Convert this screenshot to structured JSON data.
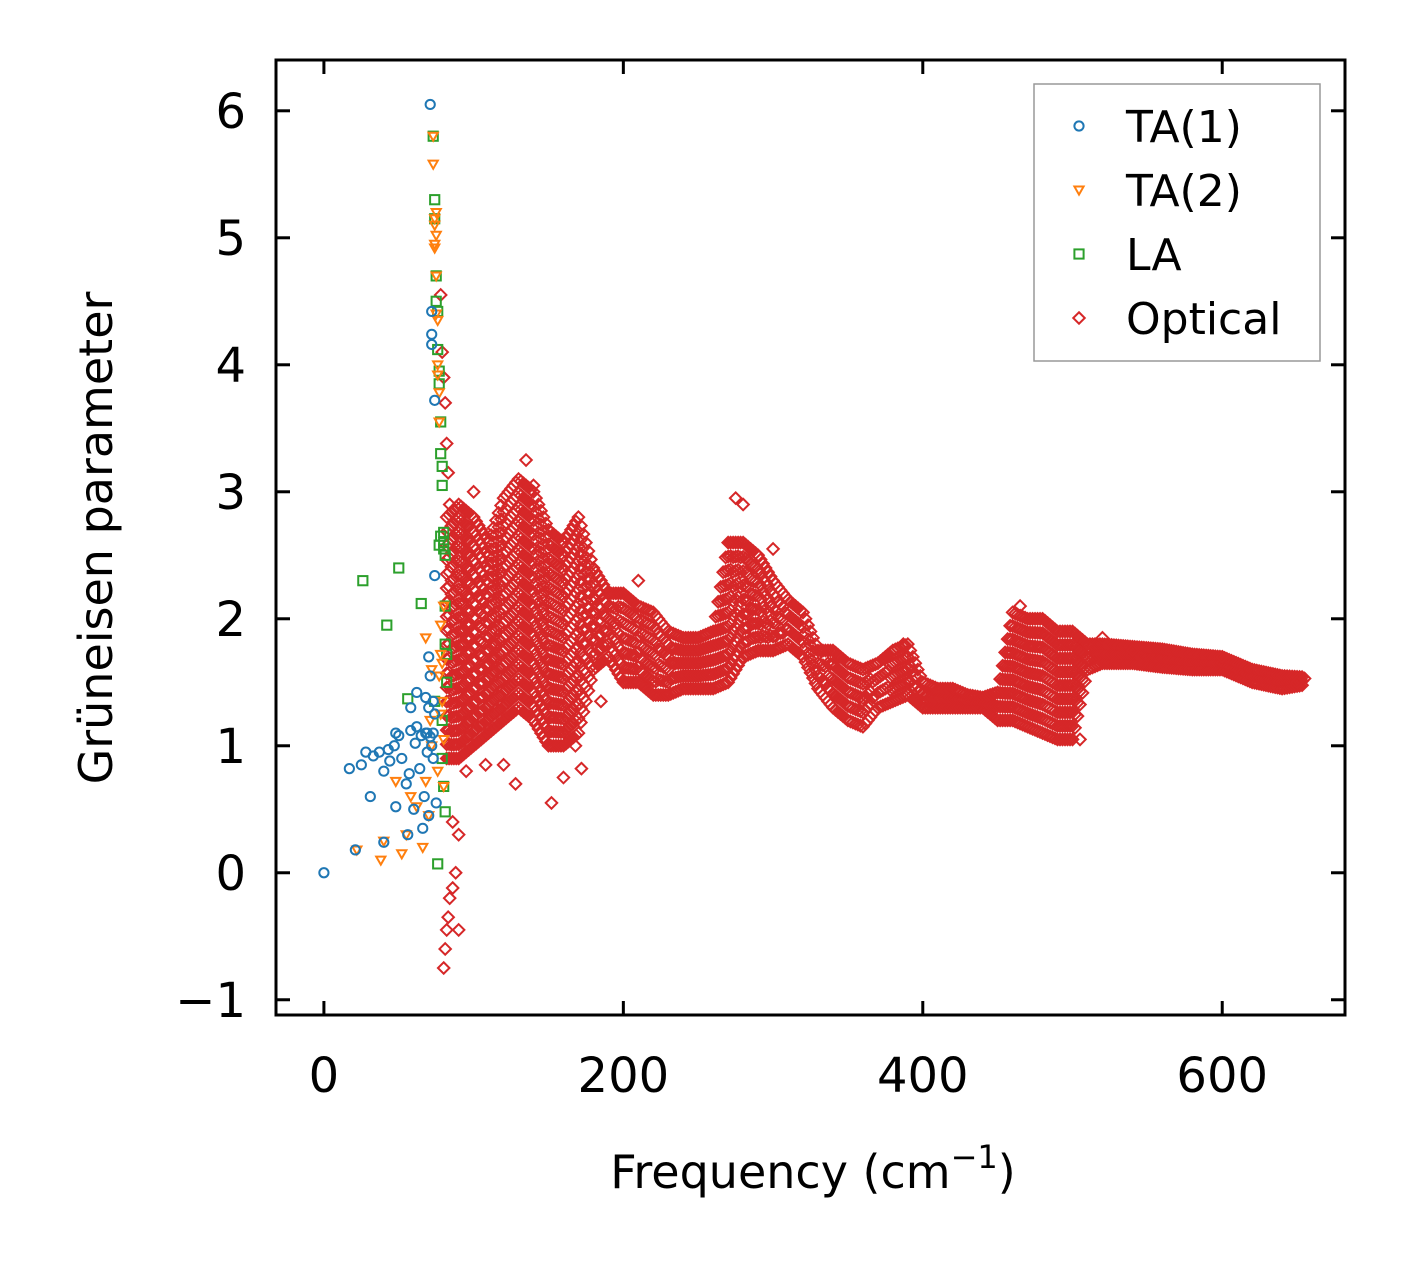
{
  "chart_data": {
    "type": "scatter",
    "title": "",
    "xlabel": "Frequency (cm",
    "xlabel_sup": "−1",
    "xlabel_suffix": ")",
    "ylabel": "Grüneisen parameter",
    "xlim": [
      -32,
      682
    ],
    "ylim": [
      -1.12,
      6.4
    ],
    "xticks": [
      0,
      200,
      400,
      600
    ],
    "xtick_labels": [
      "0",
      "200",
      "400",
      "600"
    ],
    "yticks": [
      -1,
      0,
      1,
      2,
      3,
      4,
      5,
      6
    ],
    "ytick_labels": [
      "−1",
      "0",
      "1",
      "2",
      "3",
      "4",
      "5",
      "6"
    ],
    "grid": false,
    "legend_position": "top-right",
    "series": [
      {
        "name": "TA(1)",
        "marker": "circle",
        "color": "#1f77b4",
        "points": [
          [
            0,
            0
          ],
          [
            17,
            0.82
          ],
          [
            21,
            0.18
          ],
          [
            25,
            0.85
          ],
          [
            31,
            0.6
          ],
          [
            33,
            0.92
          ],
          [
            37,
            0.95
          ],
          [
            40,
            0.8
          ],
          [
            40,
            0.24
          ],
          [
            44,
            0.88
          ],
          [
            47,
            1.0
          ],
          [
            48,
            0.52
          ],
          [
            50,
            1.08
          ],
          [
            52,
            0.9
          ],
          [
            55,
            0.7
          ],
          [
            56,
            0.3
          ],
          [
            57,
            0.78
          ],
          [
            58,
            1.12
          ],
          [
            60,
            0.5
          ],
          [
            61,
            1.02
          ],
          [
            62,
            1.15
          ],
          [
            64,
            0.82
          ],
          [
            65,
            1.08
          ],
          [
            66,
            0.35
          ],
          [
            67,
            0.6
          ],
          [
            68,
            1.1
          ],
          [
            69,
            0.95
          ],
          [
            70,
            0.45
          ],
          [
            70,
            1.3
          ],
          [
            71,
            1.55
          ],
          [
            71,
            6.05
          ],
          [
            72,
            4.42
          ],
          [
            72,
            4.16
          ],
          [
            72,
            4.24
          ],
          [
            73,
            1.35
          ],
          [
            73,
            1.1
          ],
          [
            74,
            2.34
          ],
          [
            74,
            3.72
          ],
          [
            69,
            1.1
          ],
          [
            71,
            1.07
          ],
          [
            72,
            1.0
          ],
          [
            73,
            0.9
          ],
          [
            74,
            1.25
          ],
          [
            75,
            0.55
          ],
          [
            68,
            1.38
          ],
          [
            70,
            1.7
          ],
          [
            62,
            1.42
          ],
          [
            58,
            1.3
          ],
          [
            48,
            1.1
          ],
          [
            43,
            0.97
          ],
          [
            28,
            0.95
          ]
        ]
      },
      {
        "name": "TA(2)",
        "marker": "triangle-down",
        "color": "#ff7f0e",
        "points": [
          [
            22,
            0.18
          ],
          [
            38,
            0.1
          ],
          [
            40,
            0.25
          ],
          [
            48,
            0.72
          ],
          [
            52,
            0.15
          ],
          [
            55,
            0.3
          ],
          [
            58,
            0.6
          ],
          [
            62,
            0.52
          ],
          [
            66,
            0.2
          ],
          [
            68,
            0.72
          ],
          [
            70,
            0.45
          ],
          [
            71,
            1.2
          ],
          [
            72,
            1.6
          ],
          [
            73,
            5.8
          ],
          [
            73,
            5.58
          ],
          [
            74,
            5.1
          ],
          [
            74,
            4.95
          ],
          [
            74,
            4.92
          ],
          [
            75,
            4.7
          ],
          [
            75,
            4.4
          ],
          [
            76,
            4.35
          ],
          [
            76,
            3.92
          ],
          [
            77,
            3.78
          ],
          [
            77,
            3.55
          ],
          [
            78,
            1.95
          ],
          [
            78,
            1.25
          ],
          [
            79,
            1.35
          ],
          [
            79,
            1.65
          ],
          [
            80,
            1.05
          ],
          [
            80,
            0.68
          ],
          [
            74,
            5.15
          ],
          [
            75,
            5.2
          ],
          [
            75,
            5.02
          ],
          [
            76,
            4.0
          ],
          [
            72,
            1.0
          ],
          [
            76,
            0.8
          ],
          [
            77,
            1.55
          ],
          [
            78,
            1.72
          ],
          [
            80,
            2.1
          ],
          [
            68,
            1.85
          ]
        ]
      },
      {
        "name": "LA",
        "marker": "square",
        "color": "#2ca02c",
        "points": [
          [
            26,
            2.3
          ],
          [
            42,
            1.95
          ],
          [
            50,
            2.4
          ],
          [
            56,
            1.37
          ],
          [
            65,
            2.12
          ],
          [
            73,
            5.8
          ],
          [
            74,
            5.3
          ],
          [
            74,
            5.15
          ],
          [
            75,
            4.7
          ],
          [
            75,
            4.5
          ],
          [
            76,
            4.42
          ],
          [
            76,
            4.12
          ],
          [
            77,
            3.95
          ],
          [
            77,
            3.85
          ],
          [
            78,
            3.55
          ],
          [
            78,
            3.3
          ],
          [
            79,
            3.2
          ],
          [
            79,
            3.05
          ],
          [
            80,
            2.68
          ],
          [
            80,
            2.6
          ],
          [
            80,
            2.55
          ],
          [
            81,
            2.5
          ],
          [
            81,
            2.1
          ],
          [
            81,
            1.8
          ],
          [
            82,
            1.72
          ],
          [
            82,
            1.5
          ],
          [
            79,
            1.2
          ],
          [
            80,
            0.68
          ],
          [
            81,
            0.48
          ],
          [
            76,
            0.07
          ],
          [
            74,
            1.35
          ],
          [
            77,
            2.58
          ],
          [
            78,
            2.65
          ],
          [
            79,
            0.9
          ]
        ]
      },
      {
        "name": "Optical",
        "marker": "diamond",
        "color": "#d62728",
        "points": [
          [
            78,
            4.55
          ],
          [
            79,
            4.1
          ],
          [
            80,
            3.9
          ],
          [
            81,
            3.7
          ],
          [
            82,
            3.38
          ],
          [
            83,
            3.15
          ],
          [
            84,
            2.9
          ],
          [
            80,
            -0.75
          ],
          [
            81,
            -0.6
          ],
          [
            82,
            -0.45
          ],
          [
            83,
            -0.35
          ],
          [
            84,
            -0.2
          ],
          [
            86,
            -0.12
          ],
          [
            88,
            0.0
          ],
          [
            90,
            -0.45
          ],
          [
            86,
            0.4
          ],
          [
            90,
            0.3
          ],
          [
            95,
            0.8
          ],
          [
            100,
            3.0
          ],
          [
            108,
            0.85
          ],
          [
            120,
            0.85
          ],
          [
            128,
            0.7
          ],
          [
            135,
            3.25
          ],
          [
            140,
            3.05
          ],
          [
            152,
            0.55
          ],
          [
            160,
            0.75
          ],
          [
            168,
            1.0
          ],
          [
            172,
            0.82
          ],
          [
            185,
            1.35
          ],
          [
            210,
            2.3
          ],
          [
            275,
            2.95
          ],
          [
            280,
            2.9
          ],
          [
            300,
            2.55
          ],
          [
            340,
            1.65
          ],
          [
            360,
            1.35
          ],
          [
            387,
            1.8
          ],
          [
            465,
            2.1
          ],
          [
            505,
            1.05
          ],
          [
            520,
            1.85
          ],
          [
            540,
            1.75
          ],
          [
            600,
            1.7
          ],
          [
            650,
            1.5
          ],
          [
            655,
            1.53
          ]
        ],
        "band": [
          [
            82,
            0.9,
            2.8
          ],
          [
            90,
            0.9,
            2.9
          ],
          [
            100,
            1.0,
            2.8
          ],
          [
            110,
            1.1,
            2.6
          ],
          [
            120,
            1.2,
            2.95
          ],
          [
            130,
            1.3,
            3.1
          ],
          [
            140,
            1.2,
            3.0
          ],
          [
            150,
            1.0,
            2.7
          ],
          [
            160,
            1.0,
            2.6
          ],
          [
            170,
            1.1,
            2.8
          ],
          [
            180,
            1.6,
            2.4
          ],
          [
            190,
            1.7,
            2.2
          ],
          [
            200,
            1.5,
            2.2
          ],
          [
            210,
            1.5,
            2.1
          ],
          [
            220,
            1.4,
            2.05
          ],
          [
            230,
            1.4,
            1.9
          ],
          [
            240,
            1.45,
            1.85
          ],
          [
            250,
            1.45,
            1.85
          ],
          [
            260,
            1.45,
            1.9
          ],
          [
            270,
            1.5,
            2.6
          ],
          [
            280,
            1.7,
            2.6
          ],
          [
            290,
            1.75,
            2.5
          ],
          [
            300,
            1.75,
            2.3
          ],
          [
            310,
            1.8,
            2.15
          ],
          [
            320,
            1.7,
            2.05
          ],
          [
            330,
            1.45,
            1.75
          ],
          [
            340,
            1.3,
            1.75
          ],
          [
            350,
            1.2,
            1.65
          ],
          [
            360,
            1.15,
            1.6
          ],
          [
            370,
            1.3,
            1.65
          ],
          [
            380,
            1.35,
            1.75
          ],
          [
            390,
            1.4,
            1.8
          ],
          [
            400,
            1.3,
            1.5
          ],
          [
            410,
            1.3,
            1.45
          ],
          [
            420,
            1.3,
            1.45
          ],
          [
            430,
            1.3,
            1.4
          ],
          [
            440,
            1.3,
            1.38
          ],
          [
            450,
            1.2,
            1.42
          ],
          [
            460,
            1.2,
            2.05
          ],
          [
            470,
            1.15,
            2.0
          ],
          [
            480,
            1.1,
            2.0
          ],
          [
            490,
            1.05,
            1.9
          ],
          [
            500,
            1.05,
            1.9
          ],
          [
            510,
            1.6,
            1.8
          ],
          [
            520,
            1.65,
            1.8
          ],
          [
            540,
            1.65,
            1.78
          ],
          [
            560,
            1.62,
            1.76
          ],
          [
            580,
            1.6,
            1.72
          ],
          [
            600,
            1.6,
            1.7
          ],
          [
            620,
            1.5,
            1.6
          ],
          [
            640,
            1.45,
            1.55
          ],
          [
            655,
            1.48,
            1.54
          ]
        ]
      }
    ]
  }
}
